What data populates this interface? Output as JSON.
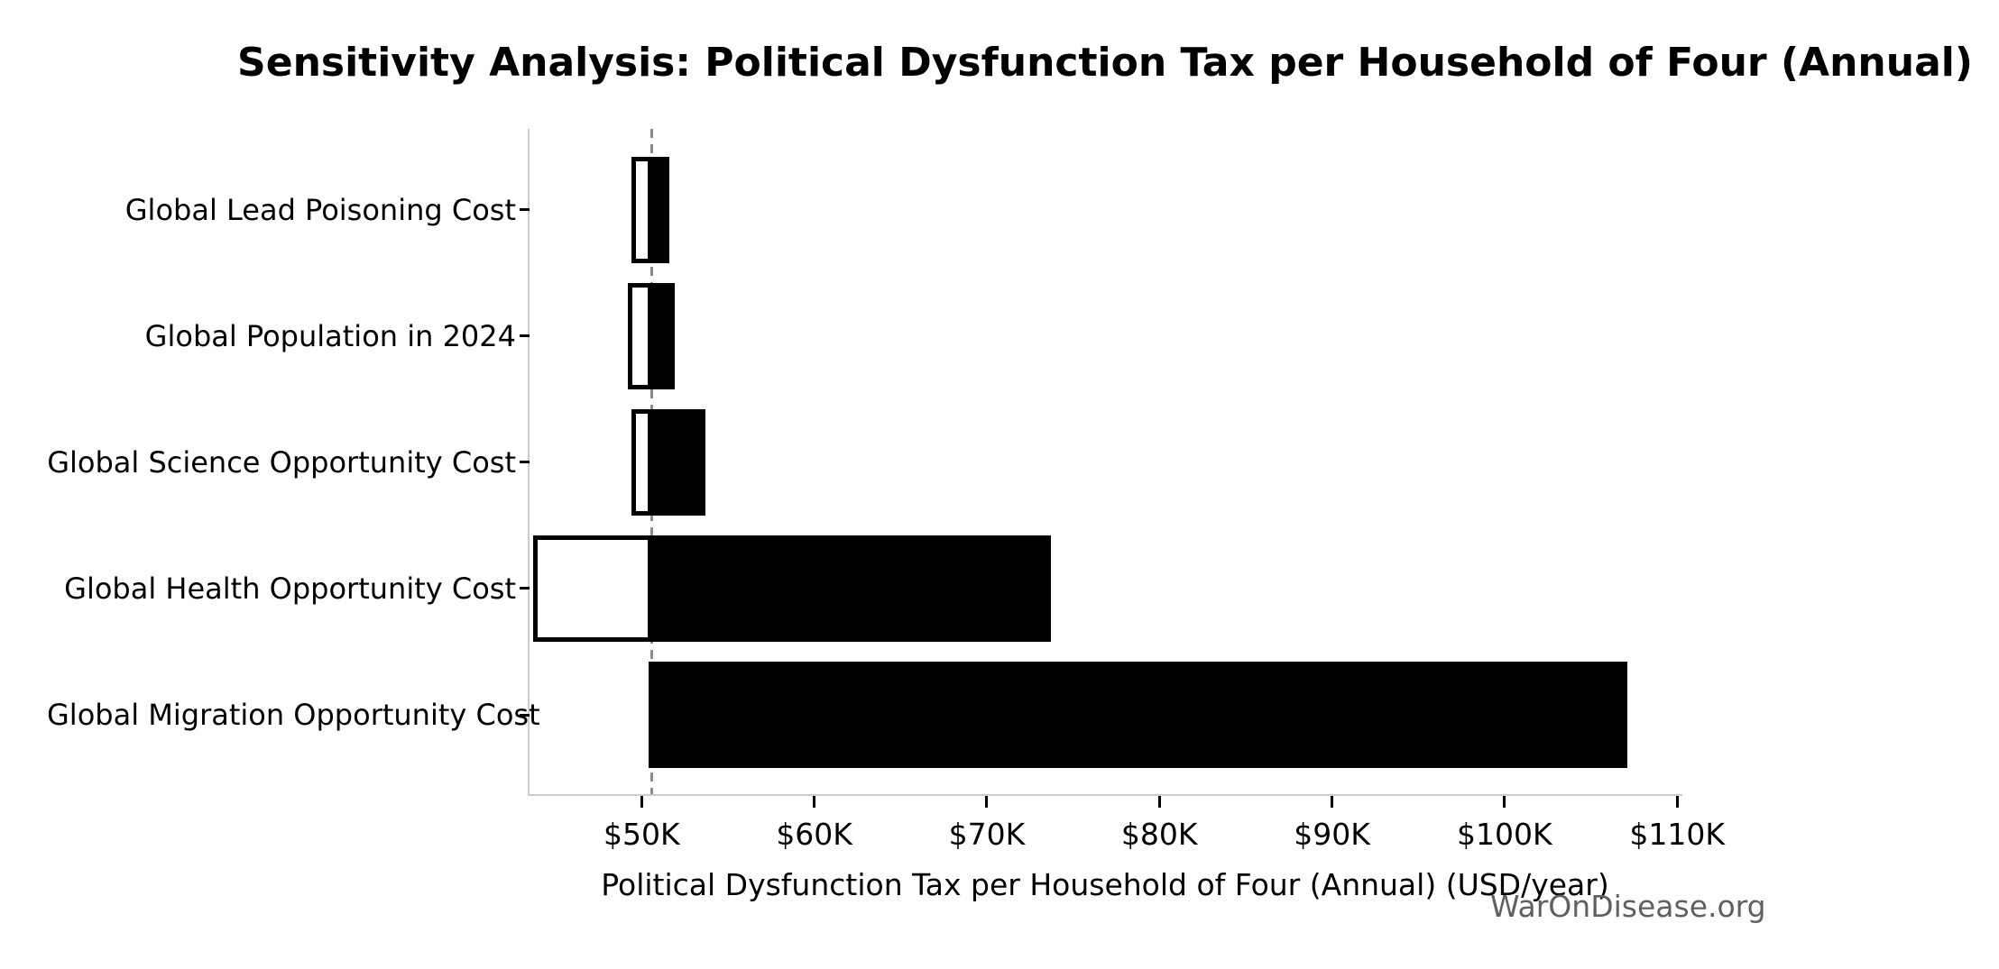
{
  "title": "Sensitivity Analysis: Political Dysfunction Tax per Household of Four (Annual)",
  "watermark": "WarOnDisease.org",
  "chart_data": {
    "type": "bar",
    "subtype": "tornado-horizontal",
    "title": "Sensitivity Analysis: Political Dysfunction Tax per Household of Four (Annual)",
    "xlabel": "Political Dysfunction Tax per Household of Four (Annual) (USD/year)",
    "ylabel": "",
    "units": "thousand USD per year",
    "categories": [
      "Global Lead Poisoning Cost",
      "Global Population in 2024",
      "Global Science Opportunity Cost",
      "Global Health Opportunity Cost",
      "Global Migration Opportunity Cost"
    ],
    "series": [
      {
        "name": "Low",
        "values": [
          49.4,
          49.2,
          49.4,
          43.7,
          50.4
        ]
      },
      {
        "name": "High",
        "values": [
          51.6,
          51.9,
          53.7,
          73.7,
          107.1
        ]
      }
    ],
    "baseline_k": 50.6,
    "xlim": [
      43.5,
      110.2
    ],
    "x_ticks": [
      {
        "value": 50,
        "label": "$50K"
      },
      {
        "value": 60,
        "label": "$60K"
      },
      {
        "value": 70,
        "label": "$70K"
      },
      {
        "value": 80,
        "label": "$80K"
      },
      {
        "value": 90,
        "label": "$90K"
      },
      {
        "value": 100,
        "label": "$100K"
      },
      {
        "value": 110,
        "label": "$110K"
      }
    ],
    "grid": false,
    "legend": false,
    "colors": {
      "bar_low_fill": "#ffffff",
      "bar_low_edge": "#000000",
      "bar_high_fill": "#000000",
      "baseline_line": "#8a8a8a",
      "spine": "#cccccc",
      "watermark": "#606060"
    }
  }
}
